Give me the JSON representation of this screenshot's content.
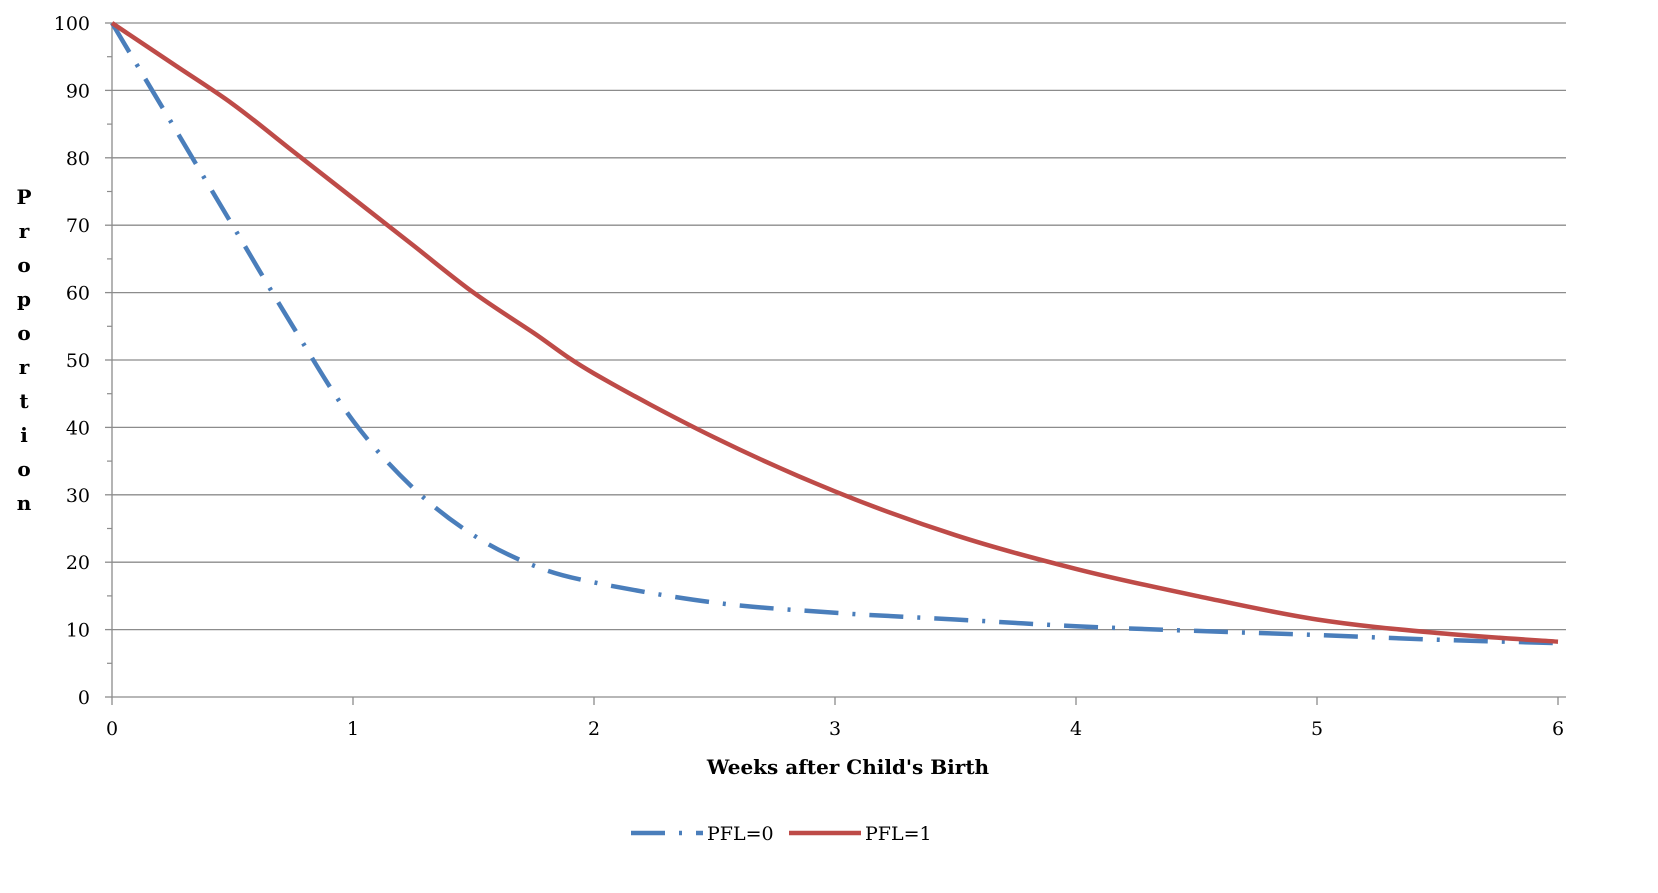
{
  "chart_data": {
    "type": "line",
    "title": "",
    "xlabel": "Weeks after Child's Birth",
    "ylabel": "Proportion",
    "xlim": [
      0,
      6
    ],
    "ylim": [
      0,
      100
    ],
    "x_ticks": [
      "0",
      "1",
      "2",
      "3",
      "4",
      "5",
      "6"
    ],
    "y_ticks": [
      "0",
      "10",
      "20",
      "30",
      "40",
      "50",
      "60",
      "70",
      "80",
      "90",
      "100"
    ],
    "grid": "horizontal",
    "legend_position": "bottom",
    "series": [
      {
        "name": "PFL=0",
        "color": "#4a7ebb",
        "style": "dash-dot",
        "x": [
          0,
          0.25,
          0.5,
          0.75,
          1,
          1.25,
          1.5,
          1.75,
          2,
          2.5,
          3,
          3.5,
          4,
          4.5,
          5,
          5.5,
          6
        ],
        "y": [
          100,
          85,
          70,
          55,
          41,
          31,
          24,
          19.5,
          17,
          14,
          12.5,
          11.5,
          10.5,
          9.8,
          9.2,
          8.5,
          8
        ]
      },
      {
        "name": "PFL=1",
        "color": "#be4b48",
        "style": "solid",
        "x": [
          0,
          0.25,
          0.5,
          0.75,
          1,
          1.25,
          1.5,
          1.75,
          2,
          2.5,
          3,
          3.5,
          4,
          4.5,
          5,
          5.5,
          6
        ],
        "y": [
          100,
          94,
          88,
          81,
          74,
          67,
          60,
          54,
          48,
          38.5,
          30.5,
          24,
          19,
          15,
          11.5,
          9.5,
          8.2
        ]
      }
    ]
  }
}
